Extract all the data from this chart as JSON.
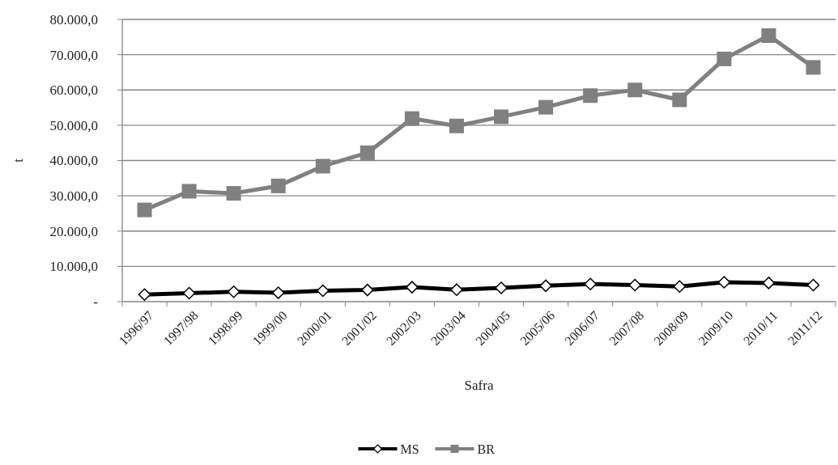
{
  "chart_data": {
    "type": "line",
    "xlabel": "Safra",
    "ylabel": "t",
    "categories": [
      "1996/97",
      "1997/98",
      "1998/99",
      "1999/00",
      "2000/01",
      "2001/02",
      "2002/03",
      "2003/04",
      "2004/05",
      "2005/06",
      "2006/07",
      "2007/08",
      "2008/09",
      "2009/10",
      "2010/11",
      "2011/12"
    ],
    "series": [
      {
        "name": "MS",
        "color": "#000000",
        "marker": "diamond",
        "values": [
          2000,
          2400,
          2800,
          2500,
          3100,
          3300,
          4100,
          3400,
          3900,
          4500,
          5000,
          4700,
          4300,
          5500,
          5300,
          4700
        ]
      },
      {
        "name": "BR",
        "color": "#808080",
        "marker": "square",
        "values": [
          26000,
          31300,
          30700,
          32800,
          38400,
          42200,
          51900,
          49800,
          52400,
          55100,
          58400,
          60000,
          57200,
          68800,
          75400,
          66400
        ]
      }
    ],
    "ylim": [
      0,
      80000
    ],
    "yticks": [
      {
        "value": 0,
        "label": "-"
      },
      {
        "value": 10000,
        "label": "10.000,0"
      },
      {
        "value": 20000,
        "label": "20.000,0"
      },
      {
        "value": 30000,
        "label": "30.000,0"
      },
      {
        "value": 40000,
        "label": "40.000,0"
      },
      {
        "value": 50000,
        "label": "50.000,0"
      },
      {
        "value": 60000,
        "label": "60.000,0"
      },
      {
        "value": 70000,
        "label": "70.000,0"
      },
      {
        "value": 80000,
        "label": "80.000,0"
      }
    ],
    "grid": "y",
    "legend": "bottom"
  }
}
